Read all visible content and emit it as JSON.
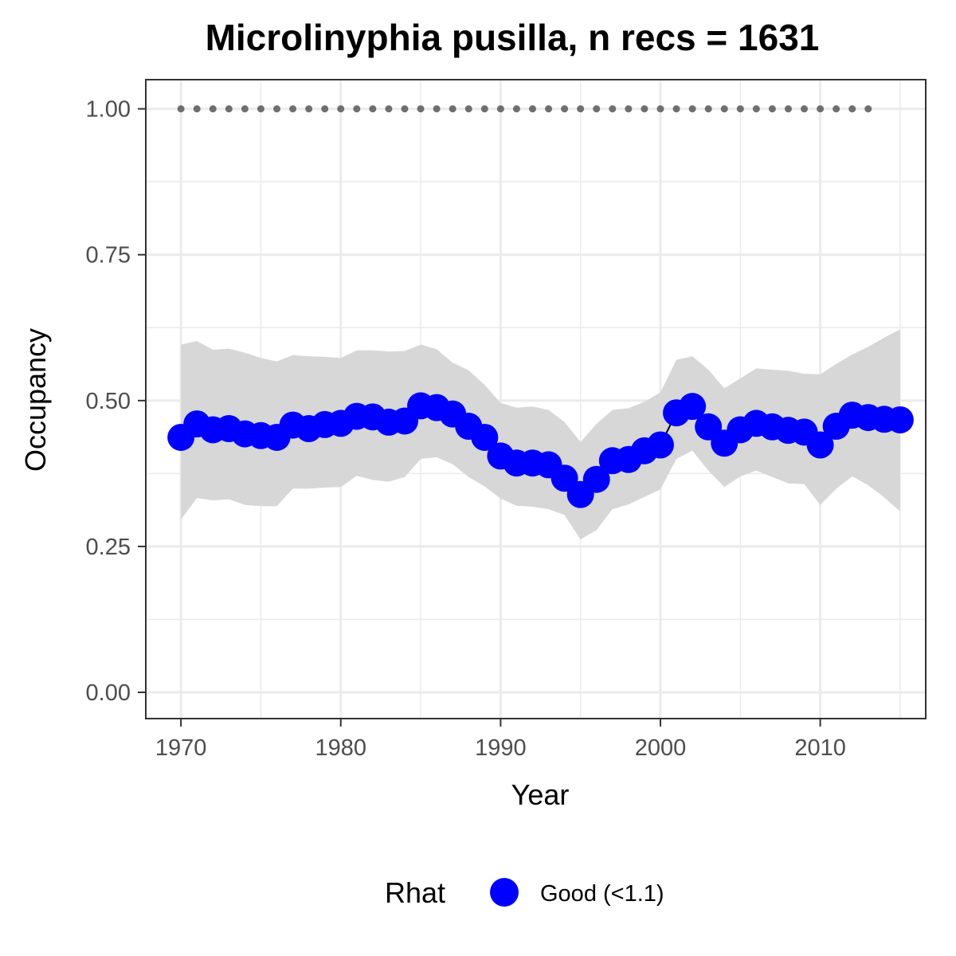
{
  "chart_data": {
    "type": "line",
    "title": "Microlinyphia pusilla, n recs = 1631",
    "xlabel": "Year",
    "ylabel": "Occupancy",
    "xlim": [
      1967.8,
      2016.6
    ],
    "ylim": [
      -0.045,
      1.05
    ],
    "xticks": [
      1970,
      1980,
      1990,
      2000,
      2010
    ],
    "xtick_labels": [
      "1970",
      "1980",
      "1990",
      "2000",
      "2010"
    ],
    "yticks": [
      0,
      0.25,
      0.5,
      0.75,
      1
    ],
    "ytick_labels": [
      "0.00",
      "0.25",
      "0.50",
      "0.75",
      "1.00"
    ],
    "grid": true,
    "legend": {
      "title": "Rhat",
      "position": "bottom",
      "entries": [
        {
          "label": "Good (<1.1)",
          "color": "#0000ff"
        }
      ]
    },
    "x": [
      1970,
      1971,
      1972,
      1973,
      1974,
      1975,
      1976,
      1977,
      1978,
      1979,
      1980,
      1981,
      1982,
      1983,
      1984,
      1985,
      1986,
      1987,
      1988,
      1989,
      1990,
      1991,
      1992,
      1993,
      1994,
      1995,
      1996,
      1997,
      1998,
      1999,
      2000,
      2001,
      2002,
      2003,
      2004,
      2005,
      2006,
      2007,
      2008,
      2009,
      2010,
      2011,
      2012,
      2013,
      2014,
      2015
    ],
    "series": [
      {
        "values": [
          0.437,
          0.46,
          0.45,
          0.452,
          0.443,
          0.44,
          0.437,
          0.458,
          0.452,
          0.459,
          0.461,
          0.473,
          0.472,
          0.463,
          0.465,
          0.491,
          0.488,
          0.477,
          0.456,
          0.437,
          0.405,
          0.393,
          0.393,
          0.39,
          0.367,
          0.339,
          0.365,
          0.397,
          0.399,
          0.414,
          0.424,
          0.479,
          0.49,
          0.455,
          0.427,
          0.45,
          0.461,
          0.455,
          0.449,
          0.446,
          0.424,
          0.456,
          0.475,
          0.471,
          0.468,
          0.467
        ],
        "lower": [
          0.296,
          0.333,
          0.329,
          0.331,
          0.321,
          0.319,
          0.319,
          0.349,
          0.349,
          0.351,
          0.352,
          0.371,
          0.364,
          0.361,
          0.369,
          0.4,
          0.403,
          0.391,
          0.369,
          0.353,
          0.332,
          0.32,
          0.318,
          0.314,
          0.304,
          0.262,
          0.278,
          0.314,
          0.322,
          0.335,
          0.348,
          0.4,
          0.414,
          0.38,
          0.352,
          0.37,
          0.38,
          0.369,
          0.358,
          0.357,
          0.321,
          0.349,
          0.37,
          0.355,
          0.334,
          0.31
        ],
        "upper": [
          0.596,
          0.602,
          0.587,
          0.589,
          0.582,
          0.573,
          0.567,
          0.578,
          0.576,
          0.575,
          0.573,
          0.586,
          0.586,
          0.584,
          0.585,
          0.596,
          0.588,
          0.565,
          0.552,
          0.527,
          0.496,
          0.488,
          0.49,
          0.484,
          0.463,
          0.429,
          0.46,
          0.484,
          0.487,
          0.498,
          0.514,
          0.57,
          0.576,
          0.553,
          0.521,
          0.538,
          0.555,
          0.553,
          0.551,
          0.546,
          0.545,
          0.563,
          0.579,
          0.592,
          0.608,
          0.622
        ],
        "color": "#0000ff",
        "ribbon_color": "#d7d7d7"
      },
      {
        "x": [
          1970,
          1971,
          1972,
          1973,
          1974,
          1975,
          1976,
          1977,
          1978,
          1979,
          1980,
          1981,
          1982,
          1983,
          1984,
          1985,
          1986,
          1987,
          1988,
          1989,
          1990,
          1991,
          1992,
          1993,
          1994,
          1995,
          1996,
          1997,
          1998,
          1999,
          2000,
          2001,
          2002,
          2003,
          2004,
          2005,
          2006,
          2007,
          2008,
          2009,
          2010,
          2011,
          2012,
          2013
        ],
        "values": [
          1,
          1,
          1,
          1,
          1,
          1,
          1,
          1,
          1,
          1,
          1,
          1,
          1,
          1,
          1,
          1,
          1,
          1,
          1,
          1,
          1,
          1,
          1,
          1,
          1,
          1,
          1,
          1,
          1,
          1,
          1,
          1,
          1,
          1,
          1,
          1,
          1,
          1,
          1,
          1,
          1,
          1,
          1,
          1
        ],
        "color": "#6e6e6e",
        "style": "dotted"
      }
    ]
  }
}
